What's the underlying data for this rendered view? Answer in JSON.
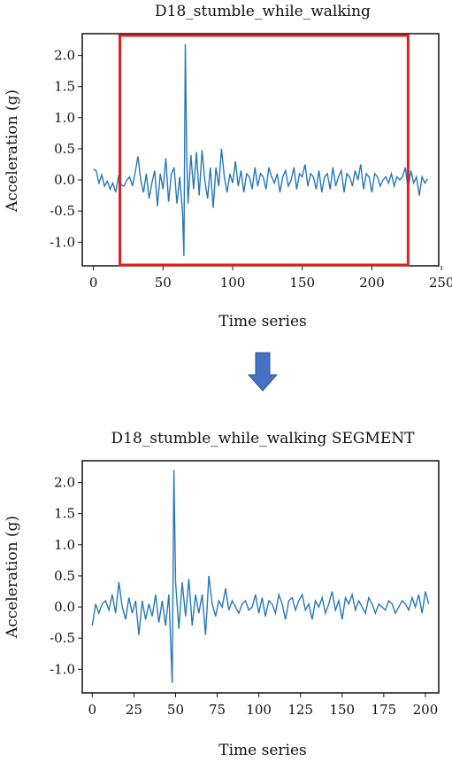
{
  "charts": [
    {
      "title": "D18_stumble_while_walking",
      "xlabel": "Time series",
      "ylabel": "Acceleration (g)"
    },
    {
      "title": "D18_stumble_while_walking SEGMENT",
      "xlabel": "Time series",
      "ylabel": "Acceleration (g)"
    }
  ],
  "colors": {
    "line": "#2878b5",
    "highlight": "#e02020",
    "arrow": "#4472c4"
  },
  "chart_data": [
    {
      "type": "line",
      "title": "D18_stumble_while_walking",
      "xlabel": "Time series",
      "ylabel": "Acceleration (g)",
      "xlim": [
        -8,
        248
      ],
      "ylim": [
        -1.38,
        2.35
      ],
      "xticks": [
        0,
        50,
        100,
        150,
        200,
        250
      ],
      "yticks": [
        -1.0,
        -0.5,
        0.0,
        0.5,
        1.0,
        1.5,
        2.0
      ],
      "highlight": {
        "x0": 19,
        "x1": 226
      },
      "x": [
        0,
        2,
        4,
        6,
        8,
        10,
        12,
        14,
        16,
        18,
        20,
        22,
        24,
        26,
        28,
        30,
        32,
        34,
        36,
        38,
        40,
        42,
        44,
        46,
        48,
        50,
        52,
        54,
        56,
        58,
        60,
        62,
        64,
        65,
        66,
        67,
        68,
        70,
        72,
        74,
        76,
        78,
        80,
        82,
        84,
        86,
        88,
        90,
        92,
        94,
        96,
        98,
        100,
        102,
        104,
        106,
        108,
        110,
        112,
        114,
        116,
        118,
        120,
        122,
        124,
        126,
        128,
        130,
        132,
        134,
        136,
        138,
        140,
        142,
        144,
        146,
        148,
        150,
        152,
        154,
        156,
        158,
        160,
        162,
        164,
        166,
        168,
        170,
        172,
        174,
        176,
        178,
        180,
        182,
        184,
        186,
        188,
        190,
        192,
        194,
        196,
        198,
        200,
        202,
        204,
        206,
        208,
        210,
        212,
        214,
        216,
        218,
        220,
        222,
        224,
        226,
        228,
        230,
        232,
        234,
        236,
        238,
        240
      ],
      "y": [
        0.17,
        0.15,
        -0.05,
        0.08,
        -0.1,
        -0.02,
        -0.15,
        -0.05,
        -0.2,
        0.05,
        -0.08,
        -0.1,
        0.0,
        0.05,
        -0.1,
        0.12,
        0.38,
        0.0,
        -0.2,
        0.1,
        -0.3,
        -0.05,
        0.15,
        -0.42,
        0.1,
        -0.15,
        0.35,
        -0.35,
        0.1,
        0.2,
        -0.38,
        0.05,
        -0.5,
        -1.22,
        2.18,
        0.4,
        -0.38,
        0.4,
        -0.15,
        0.45,
        -0.25,
        0.48,
        0.0,
        -0.3,
        0.2,
        -0.45,
        0.2,
        -0.1,
        0.5,
        0.05,
        -0.2,
        0.1,
        -0.05,
        0.3,
        -0.1,
        0.15,
        -0.2,
        0.1,
        0.05,
        -0.15,
        0.2,
        -0.1,
        0.1,
        0.05,
        -0.15,
        0.2,
        0.05,
        -0.05,
        0.1,
        -0.2,
        0.05,
        0.15,
        -0.1,
        0.0,
        0.2,
        -0.15,
        0.1,
        0.05,
        0.25,
        -0.1,
        0.1,
        0.05,
        -0.15,
        0.15,
        -0.2,
        0.05,
        0.1,
        -0.15,
        0.2,
        -0.1,
        0.05,
        0.15,
        -0.2,
        0.1,
        0.05,
        -0.1,
        0.15,
        0.0,
        0.25,
        -0.15,
        0.1,
        0.05,
        -0.2,
        0.1,
        0.05,
        -0.1,
        0.0,
        0.05,
        -0.05,
        0.1,
        -0.1,
        0.05,
        0.0,
        0.05,
        0.2,
        -0.15,
        0.15,
        -0.05,
        0.05,
        -0.25,
        0.05,
        -0.05,
        0.02
      ]
    },
    {
      "type": "line",
      "title": "D18_stumble_while_walking SEGMENT",
      "xlabel": "Time series",
      "ylabel": "Acceleration (g)",
      "xlim": [
        -6,
        208
      ],
      "ylim": [
        -1.38,
        2.35
      ],
      "xticks": [
        0,
        25,
        50,
        75,
        100,
        125,
        150,
        175,
        200
      ],
      "yticks": [
        -1.0,
        -0.5,
        0.0,
        0.5,
        1.0,
        1.5,
        2.0
      ],
      "x": [
        0,
        2,
        4,
        6,
        8,
        10,
        12,
        14,
        16,
        18,
        20,
        22,
        24,
        26,
        28,
        30,
        32,
        34,
        36,
        38,
        40,
        42,
        44,
        46,
        47,
        48,
        49,
        50,
        52,
        54,
        56,
        58,
        60,
        62,
        64,
        66,
        68,
        70,
        72,
        74,
        76,
        78,
        80,
        82,
        84,
        86,
        88,
        90,
        92,
        94,
        96,
        98,
        100,
        102,
        104,
        106,
        108,
        110,
        112,
        114,
        116,
        118,
        120,
        122,
        124,
        126,
        128,
        130,
        132,
        134,
        136,
        138,
        140,
        142,
        144,
        146,
        148,
        150,
        152,
        154,
        156,
        158,
        160,
        162,
        164,
        166,
        168,
        170,
        172,
        174,
        176,
        178,
        180,
        182,
        184,
        186,
        188,
        190,
        192,
        194,
        196,
        198,
        200,
        202
      ],
      "y": [
        -0.3,
        0.05,
        -0.1,
        0.05,
        0.1,
        -0.05,
        0.2,
        -0.1,
        0.4,
        0.0,
        -0.2,
        0.15,
        -0.1,
        0.1,
        -0.45,
        0.1,
        -0.2,
        0.05,
        -0.15,
        0.2,
        -0.25,
        0.1,
        -0.3,
        0.2,
        -0.5,
        -1.22,
        2.2,
        0.4,
        -0.35,
        0.4,
        -0.15,
        0.45,
        -0.3,
        0.2,
        -0.1,
        0.2,
        -0.45,
        0.5,
        0.05,
        -0.15,
        0.1,
        0.0,
        0.3,
        -0.05,
        0.1,
        0.0,
        -0.1,
        0.05,
        0.1,
        -0.05,
        0.0,
        0.2,
        -0.1,
        0.15,
        -0.15,
        0.1,
        0.05,
        -0.1,
        0.2,
        0.05,
        -0.2,
        0.1,
        0.15,
        -0.05,
        0.1,
        0.2,
        -0.05,
        0.05,
        -0.2,
        0.1,
        0.0,
        0.15,
        -0.1,
        0.05,
        0.25,
        -0.05,
        0.1,
        -0.2,
        0.15,
        0.05,
        0.2,
        -0.05,
        0.1,
        0.0,
        -0.1,
        0.15,
        0.05,
        -0.1,
        0.05,
        0.0,
        -0.05,
        0.1,
        0.05,
        -0.1,
        0.0,
        0.1,
        0.05,
        -0.05,
        0.15,
        0.0,
        0.2,
        -0.1,
        0.25,
        0.05
      ]
    }
  ]
}
